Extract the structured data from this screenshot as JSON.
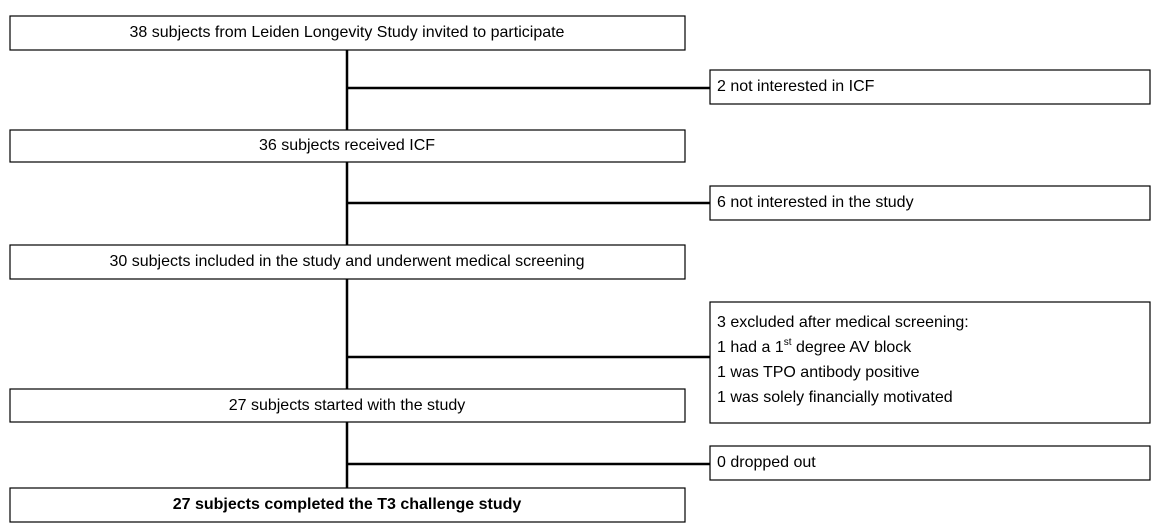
{
  "nodes": [
    {
      "label": "38 subjects from Leiden Longevity Study invited to participate"
    },
    {
      "label": "36 subjects received ICF"
    },
    {
      "label": "30 subjects included in the study and underwent medical screening"
    },
    {
      "label": "27 subjects started with the study"
    },
    {
      "label": "27 subjects completed the T3 challenge study"
    }
  ],
  "exclusions": [
    {
      "label": "2 not interested in ICF"
    },
    {
      "label": "6 not interested in the study"
    },
    {
      "label": "3 excluded after medical screening:",
      "reasons": [
        {
          "before": "1 had a 1",
          "sup": "st",
          "after": " degree AV block"
        },
        {
          "before": "1 was TPO antibody positive"
        },
        {
          "before": "1 was solely financially motivated"
        }
      ]
    },
    {
      "label": "0 dropped out"
    }
  ]
}
